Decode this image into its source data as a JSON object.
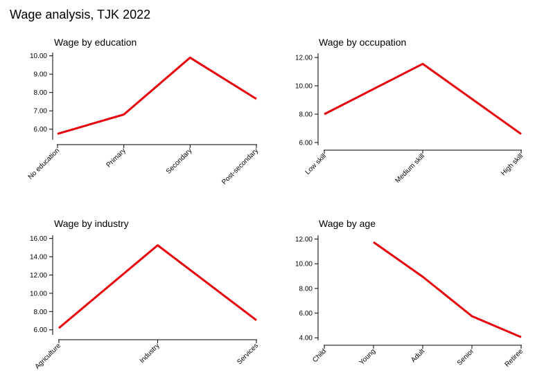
{
  "title": "Wage analysis, TJK 2022",
  "colors": {
    "series": "#e8000b",
    "axis": "#000000"
  },
  "chart_data": [
    {
      "type": "line",
      "title": "Wage by education",
      "categories": [
        "No education",
        "Primary",
        "Secondary",
        "Post-secondary"
      ],
      "values": [
        5.75,
        6.8,
        9.9,
        7.65
      ],
      "ylim": [
        5.5,
        10.1
      ],
      "yticks": [
        "10.00",
        "9.00",
        "8.00",
        "7.00",
        "6.00"
      ],
      "xlabel": "",
      "ylabel": "",
      "grid": false,
      "legend": "none"
    },
    {
      "type": "line",
      "title": "Wage by occupation",
      "categories": [
        "Low skill",
        "Medium skill",
        "High skill"
      ],
      "values": [
        8.0,
        11.55,
        6.6
      ],
      "ylim": [
        5.9,
        12.2
      ],
      "yticks": [
        "12.00",
        "10.00",
        "8.00",
        "6.00"
      ],
      "xlabel": "",
      "ylabel": "",
      "grid": false,
      "legend": "none"
    },
    {
      "type": "line",
      "title": "Wage by industry",
      "categories": [
        "Agriculture",
        "Industry",
        "Services"
      ],
      "values": [
        6.2,
        15.25,
        7.05
      ],
      "ylim": [
        5.6,
        16.2
      ],
      "yticks": [
        "16.00",
        "14.00",
        "12.00",
        "10.00",
        "8.00",
        "6.00"
      ],
      "xlabel": "",
      "ylabel": "",
      "grid": false,
      "legend": "none"
    },
    {
      "type": "line",
      "title": "Wage by age",
      "categories": [
        "Child",
        "Young",
        "Adult",
        "Senior",
        "Retiree"
      ],
      "values": [
        null,
        11.75,
        8.95,
        5.75,
        4.05
      ],
      "ylim": [
        3.9,
        12.2
      ],
      "yticks": [
        "12.00",
        "10.00",
        "8.00",
        "6.00",
        "4.00"
      ],
      "xlabel": "",
      "ylabel": "",
      "grid": false,
      "legend": "none"
    }
  ]
}
